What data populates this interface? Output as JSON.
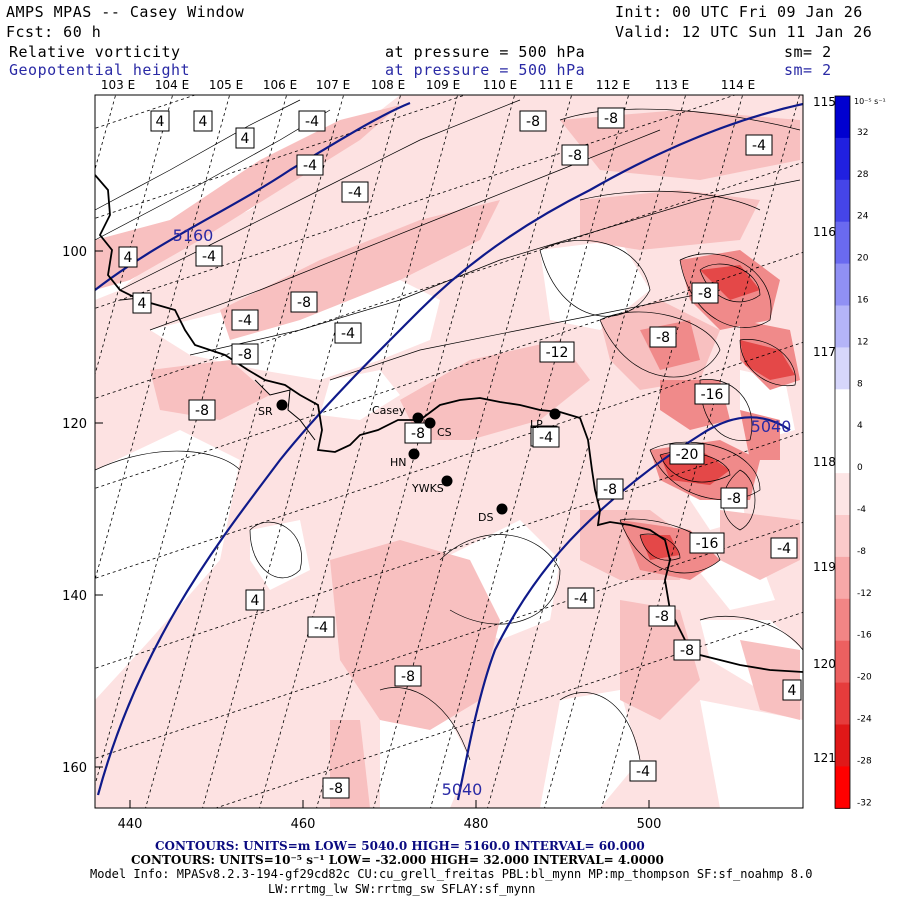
{
  "header": {
    "model": "AMPS MPAS -- Casey Window",
    "init": "Init: 00 UTC Fri 09 Jan 26",
    "fcst": "Fcst:   60 h",
    "valid": "Valid: 12 UTC Sun 11 Jan 26",
    "field1": "Relative vorticity",
    "field1_level": "at pressure =  500 hPa",
    "field1_sm": "sm= 2",
    "field2": "Geopotential height",
    "field2_level": "at pressure =  500 hPa",
    "field2_sm": "sm= 2"
  },
  "axes": {
    "x_ticks": [
      "440",
      "460",
      "480",
      "500"
    ],
    "y_ticks": [
      "100",
      "120",
      "140",
      "160"
    ],
    "lon_labels": [
      "103 E",
      "104 E",
      "105 E",
      "106 E",
      "107 E",
      "108 E",
      "109 E",
      "110 E",
      "111 E",
      "112 E",
      "113 E",
      "114 E"
    ],
    "lon_labels_right": [
      "115 E",
      "116 E",
      "117 E",
      "118 E",
      "119 E",
      "120 E",
      "121 E"
    ]
  },
  "colorbar": {
    "unit": "10⁻⁵ s⁻¹",
    "labels": [
      "32",
      "28",
      "24",
      "20",
      "16",
      "12",
      "8",
      "4",
      "0",
      "-4",
      "-8",
      "-12",
      "-16",
      "-20",
      "-24",
      "-28",
      "-32"
    ],
    "colors": [
      "#0000d0",
      "#2020e0",
      "#4545e8",
      "#6a6af0",
      "#9090f4",
      "#b4b4f8",
      "#d6d6fb",
      "#ffffff",
      "#ffffff",
      "#fde5e5",
      "#fbcaca",
      "#f7a8a8",
      "#f28585",
      "#ec6060",
      "#e63c3c",
      "#e01818",
      "#ff0000"
    ]
  },
  "stations": [
    {
      "name": "SR"
    },
    {
      "name": "Casey"
    },
    {
      "name": "CS"
    },
    {
      "name": "HN"
    },
    {
      "name": "YWKS"
    },
    {
      "name": "DS"
    },
    {
      "name": "LP"
    }
  ],
  "height_labels": [
    "5160",
    "5040",
    "5040"
  ],
  "vort_labels": [
    "4",
    "4",
    "-4",
    "4",
    "-4",
    "-4",
    "-8",
    "-8",
    "-8",
    "4",
    "-4",
    "4",
    "-4",
    "-8",
    "-4",
    "-8",
    "-12",
    "-8",
    "-8",
    "-4",
    "-8",
    "-16",
    "-4",
    "-8",
    "-20",
    "-8",
    "-8",
    "-16",
    "-4",
    "4",
    "-4",
    "-4",
    "-8",
    "-8",
    "-8",
    "-4",
    "4",
    "-8",
    "-4"
  ],
  "footer": {
    "contours1": "CONTOURS:  UNITS=m  LOW=  5040.0        HIGH=  5160.0        INTERVAL=   60.000",
    "contours2": "CONTOURS:  UNITS=10⁻⁵ s⁻¹  LOW= -32.000        HIGH=  32.000        INTERVAL=   4.0000",
    "model_info": "Model Info: MPASv8.2.3-194-gf29cd82c CU:cu_grell_freitas PBL:bl_mynn MP:mp_thompson SF:sf_noahmp 8.0",
    "model_info2": "LW:rrtmg_lw SW:rrtmg_sw SFLAY:sf_mynn"
  }
}
